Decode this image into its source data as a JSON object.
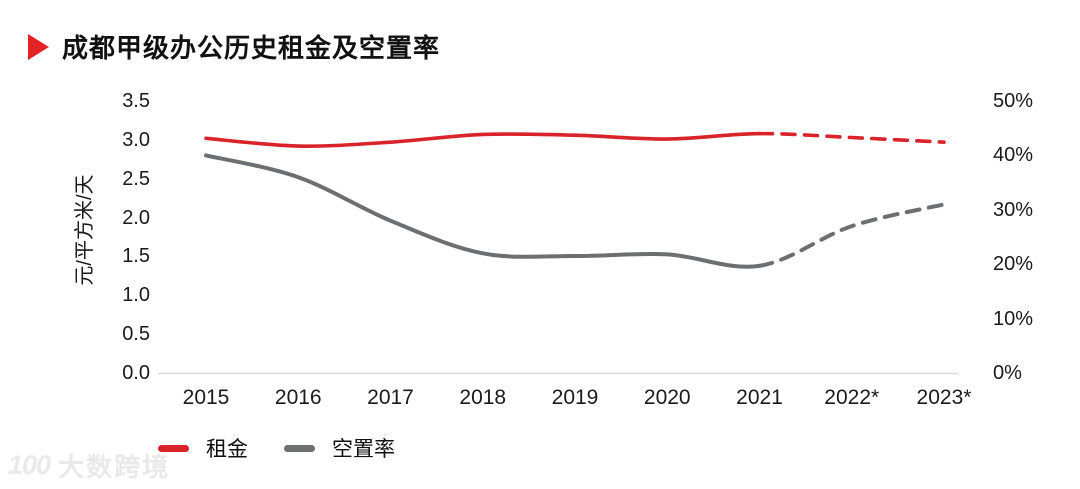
{
  "header": {
    "title": "成都甲级办公历史租金及空置率"
  },
  "watermark": {
    "logo": "100",
    "text": "大数跨境"
  },
  "chart_data": {
    "type": "line",
    "title": "成都甲级办公历史租金及空置率",
    "categories": [
      "2015",
      "2016",
      "2017",
      "2018",
      "2019",
      "2020",
      "2021",
      "2022*",
      "2023*"
    ],
    "series": [
      {
        "key": "rent",
        "name": "租金",
        "axis": "left",
        "color": "#d8232a",
        "values": [
          3.02,
          2.92,
          2.97,
          3.07,
          3.06,
          3.01,
          3.08,
          3.03,
          2.97
        ],
        "dashed_from_index": 6,
        "dashed_note": "2022*与2023*为预测值(虚线)"
      },
      {
        "key": "vacancy",
        "name": "空置率",
        "axis": "right",
        "color": "#6d6e71",
        "values": [
          40,
          36,
          28,
          22,
          21.5,
          21.8,
          19.7,
          27,
          31
        ],
        "dashed_from_index": 6,
        "dashed_note": "2022*与2023*为预测值(虚线)"
      }
    ],
    "left_axis": {
      "label": "元/平方米/天",
      "ticks": [
        "3.5",
        "3.0",
        "2.5",
        "2.0",
        "1.5",
        "1.0",
        "0.5",
        "0.0"
      ],
      "min": 0,
      "max": 3.5
    },
    "right_axis": {
      "ticks": [
        "50%",
        "40%",
        "30%",
        "20%",
        "10%",
        "0%"
      ],
      "min": 0,
      "max": 50
    },
    "legend_position": "bottom-left",
    "grid": false
  }
}
